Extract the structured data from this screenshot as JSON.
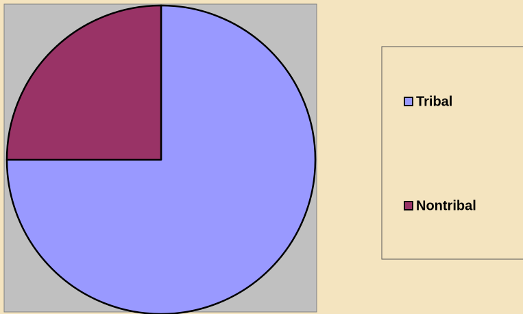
{
  "chart_data": {
    "type": "pie",
    "categories": [
      "Tribal",
      "Nontribal"
    ],
    "values": [
      75,
      25
    ],
    "colors": [
      "#9999ff",
      "#993366"
    ],
    "legend": "right"
  }
}
